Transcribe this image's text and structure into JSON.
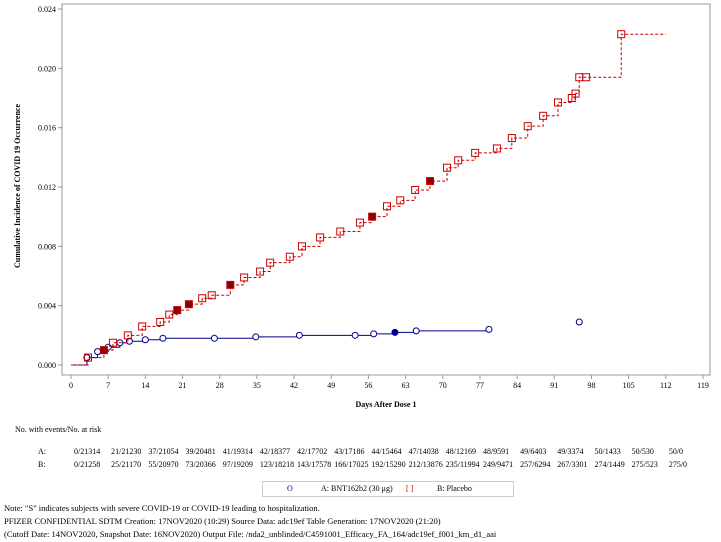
{
  "chart_data": {
    "type": "line",
    "step": true,
    "ylabel": "Cumulative Incidence of COVID 19 Occurrence",
    "xlabel": "Days After Dose 1",
    "xlim": [
      0,
      119
    ],
    "ylim": [
      0,
      0.024
    ],
    "xticks": [
      "0",
      "7",
      "14",
      "21",
      "28",
      "35",
      "42",
      "49",
      "56",
      "63",
      "70",
      "77",
      "84",
      "91",
      "98",
      "105",
      "112",
      "119"
    ],
    "yticks": [
      "0.000",
      "0.004",
      "0.008",
      "0.012",
      "0.016",
      "0.020",
      "0.024"
    ],
    "grid": false,
    "legend_placement": "bottom",
    "series": [
      {
        "name": "A: BNT162b2 (30 μg)",
        "marker": "circle",
        "line": "solid",
        "color": "#00008B",
        "points": [
          [
            0,
            0
          ],
          [
            3,
            0.0005
          ],
          [
            5,
            0.0009
          ],
          [
            7,
            0.0012
          ],
          [
            9.2,
            0.0015
          ],
          [
            11,
            0.0016
          ],
          [
            14,
            0.0017
          ],
          [
            17.3,
            0.0018
          ],
          [
            27,
            0.0018
          ],
          [
            34.8,
            0.0019
          ],
          [
            43,
            0.002
          ],
          [
            53.5,
            0.002
          ],
          [
            57,
            0.0021
          ],
          [
            61,
            0.0022
          ],
          [
            65,
            0.0023
          ],
          [
            78.7,
            0.0024
          ]
        ],
        "isolated_points": [
          [
            95.7,
            0.0029
          ]
        ],
        "severe_days": [
          61
        ]
      },
      {
        "name": "B: Placebo",
        "marker": "square",
        "line": "dashed",
        "color": "#CC0000",
        "points": [
          [
            0,
            0
          ],
          [
            3.2,
            0.0005
          ],
          [
            6.2,
            0.001
          ],
          [
            7.9,
            0.0015
          ],
          [
            10.7,
            0.002
          ],
          [
            13.4,
            0.0026
          ],
          [
            16.8,
            0.0029
          ],
          [
            18.5,
            0.0034
          ],
          [
            20,
            0.0037
          ],
          [
            22.2,
            0.0041
          ],
          [
            24.7,
            0.0045
          ],
          [
            26.5,
            0.0047
          ],
          [
            30,
            0.0054
          ],
          [
            32.6,
            0.0059
          ],
          [
            35.6,
            0.0063
          ],
          [
            37.5,
            0.0069
          ],
          [
            41.2,
            0.0073
          ],
          [
            43.5,
            0.008
          ],
          [
            46.9,
            0.0086
          ],
          [
            50.7,
            0.009
          ],
          [
            54.4,
            0.0096
          ],
          [
            56.7,
            0.01
          ],
          [
            59.5,
            0.0107
          ],
          [
            62,
            0.0111
          ],
          [
            64.8,
            0.0118
          ],
          [
            67.6,
            0.0124
          ],
          [
            70.8,
            0.0133
          ],
          [
            72.9,
            0.0138
          ],
          [
            76.1,
            0.0143
          ],
          [
            80.2,
            0.0146
          ],
          [
            83,
            0.0153
          ],
          [
            86,
            0.0161
          ],
          [
            88.9,
            0.0168
          ],
          [
            91.7,
            0.0177
          ],
          [
            94.3,
            0.018
          ],
          [
            95,
            0.0183
          ],
          [
            95.7,
            0.0194
          ],
          [
            97,
            0.0194
          ],
          [
            103.6,
            0.0223
          ],
          [
            112,
            0.0223
          ]
        ],
        "severe_days": [
          6.2,
          8.5,
          20,
          22.2,
          30,
          56.7,
          67.6
        ]
      }
    ]
  },
  "risk_table": {
    "title": "No. with events/No. at risk",
    "rows": [
      {
        "label": "A:",
        "values": [
          "0/21314",
          "21/21230",
          "37/21054",
          "39/20481",
          "41/19314",
          "42/18377",
          "42/17702",
          "43/17186",
          "44/15464",
          "47/14038",
          "48/12169",
          "48/9591",
          "49/6403",
          "49/3374",
          "50/1433",
          "50/530",
          "50/0"
        ]
      },
      {
        "label": "B:",
        "values": [
          "0/21258",
          "25/21170",
          "55/20970",
          "73/20366",
          "97/19209",
          "123/18218",
          "143/17578",
          "166/17025",
          "192/15290",
          "212/13876",
          "235/11994",
          "249/9471",
          "257/6294",
          "267/3301",
          "274/1449",
          "275/523",
          "275/0"
        ]
      }
    ]
  },
  "legend": {
    "a_symbol": "O",
    "a_label": "A: BNT162b2 (30 μg)",
    "b_symbol": "[ ]",
    "b_label": "B: Placebo"
  },
  "footnotes": [
    "Note: \"S\" indicates subjects with severe COVID-19 or COVID-19 leading to hospitalization.",
    "PFIZER CONFIDENTIAL  SDTM Creation: 17NOV2020 (10:29)  Source Data: adc19ef  Table Generation: 17NOV2020 (21:20)",
    "(Cutoff Date: 14NOV2020, Snapshot Date: 16NOV2020) Output File: /nda2_unblinded/C4591001_Efficacy_FA_164/adc19ef_f001_km_d1_aai"
  ]
}
